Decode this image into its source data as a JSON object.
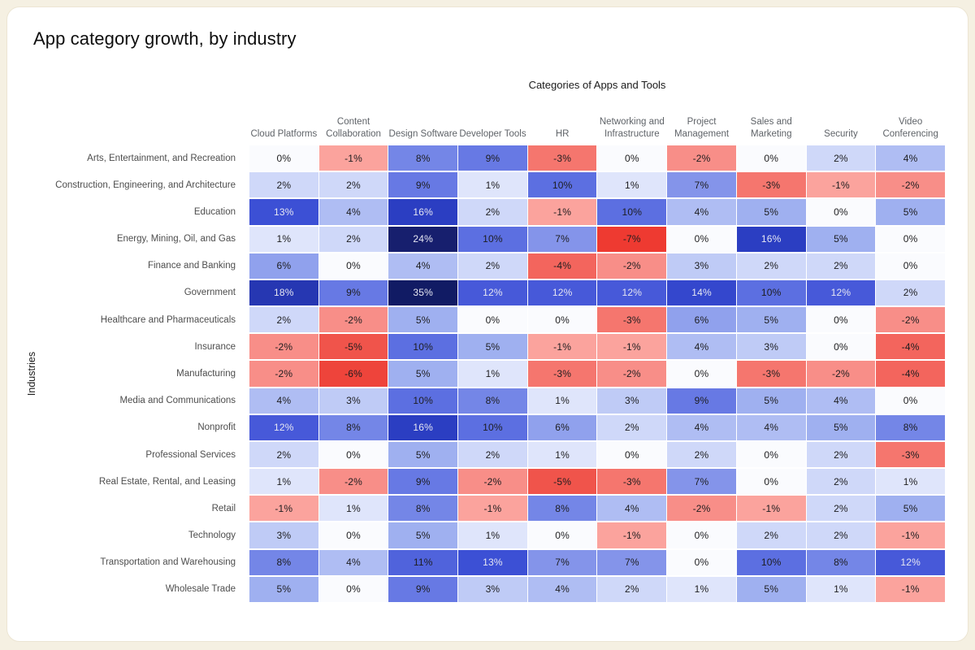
{
  "page": {
    "background_color": "#f5f0e2",
    "card_background_color": "#ffffff"
  },
  "chart_data": {
    "type": "heatmap",
    "title": "App category growth, by industry",
    "xlabel": "Categories of Apps and Tools",
    "ylabel": "Industries",
    "value_suffix": "%",
    "columns": [
      "Cloud Platforms",
      "Content Collaboration",
      "Design Software",
      "Developer Tools",
      "HR",
      "Networking and Infrastructure",
      "Project Management",
      "Sales and Marketing",
      "Security",
      "Video Conferencing"
    ],
    "rows": [
      "Arts, Entertainment, and Recreation",
      "Construction, Engineering, and Architecture",
      "Education",
      "Energy, Mining, Oil, and Gas",
      "Finance and Banking",
      "Government",
      "Healthcare and Pharmaceuticals",
      "Insurance",
      "Manufacturing",
      "Media and Communications",
      "Nonprofit",
      "Professional Services",
      "Real Estate, Rental, and Leasing",
      "Retail",
      "Technology",
      "Transportation and Warehousing",
      "Wholesale Trade"
    ],
    "values": [
      [
        0,
        -1,
        8,
        9,
        -3,
        0,
        -2,
        0,
        2,
        4
      ],
      [
        2,
        2,
        9,
        1,
        10,
        1,
        7,
        -3,
        -1,
        -2
      ],
      [
        13,
        4,
        16,
        2,
        -1,
        10,
        4,
        5,
        0,
        5
      ],
      [
        1,
        2,
        24,
        10,
        7,
        -7,
        0,
        16,
        5,
        0
      ],
      [
        6,
        0,
        4,
        2,
        -4,
        -2,
        3,
        2,
        2,
        0
      ],
      [
        18,
        9,
        35,
        12,
        12,
        12,
        14,
        10,
        12,
        2
      ],
      [
        2,
        -2,
        5,
        0,
        0,
        -3,
        6,
        5,
        0,
        -2
      ],
      [
        -2,
        -5,
        10,
        5,
        -1,
        -1,
        4,
        3,
        0,
        -4
      ],
      [
        -2,
        -6,
        5,
        1,
        -3,
        -2,
        0,
        -3,
        -2,
        -4
      ],
      [
        4,
        3,
        10,
        8,
        1,
        3,
        9,
        5,
        4,
        0
      ],
      [
        12,
        8,
        16,
        10,
        6,
        2,
        4,
        4,
        5,
        8
      ],
      [
        2,
        0,
        5,
        2,
        1,
        0,
        2,
        0,
        2,
        -3
      ],
      [
        1,
        -2,
        9,
        -2,
        -5,
        -3,
        7,
        0,
        2,
        1
      ],
      [
        -1,
        1,
        8,
        -1,
        8,
        4,
        -2,
        -1,
        2,
        5
      ],
      [
        3,
        0,
        5,
        1,
        0,
        -1,
        0,
        2,
        2,
        -1
      ],
      [
        8,
        4,
        11,
        13,
        7,
        7,
        0,
        10,
        8,
        12
      ],
      [
        5,
        0,
        9,
        3,
        4,
        2,
        1,
        5,
        1,
        -1
      ]
    ],
    "color_scale": {
      "type": "diverging",
      "negative_min": -7,
      "positive_max": 35,
      "stops": {
        "-7": "#ee3a31",
        "-6": "#ee443b",
        "-5": "#f0544b",
        "-4": "#f3655d",
        "-3": "#f5766e",
        "-2": "#f88e88",
        "-1": "#fba39d",
        "0": "#fafbfe",
        "1": "#dfe5fb",
        "2": "#cfd8f9",
        "3": "#bfcbf6",
        "4": "#afbdf3",
        "5": "#9fb0f0",
        "6": "#90a1ed",
        "7": "#8494ea",
        "8": "#7486e7",
        "9": "#6779e4",
        "10": "#5c6fe1",
        "11": "#5063dc",
        "12": "#4759d9",
        "13": "#3c50d5",
        "14": "#3447cd",
        "16": "#2b3ec2",
        "18": "#2637b2",
        "24": "#171f6e",
        "35": "#111b64"
      },
      "light_text_threshold": 12,
      "dark_text_color": "#1d1d1f",
      "light_text_color": "#e6e7f2"
    },
    "legend": "none",
    "grid": "off"
  }
}
